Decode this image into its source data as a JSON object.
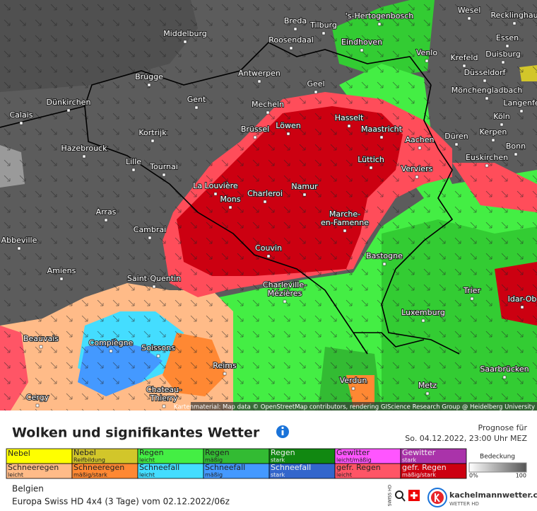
{
  "map": {
    "cities": [
      "Breda",
      "Tilburg",
      "'s-Hertogenbosch",
      "Wesel",
      "Recklinghau",
      "Middelburg",
      "Roosendaal",
      "Eindhoven",
      "Venlo",
      "Essen",
      "Krefeld",
      "Duisburg",
      "Düsseldorf",
      "Brügge",
      "Antwerpen",
      "Geel",
      "Mönchengladbach",
      "Dünkirchen",
      "Gent",
      "Mecheln",
      "Langenfe",
      "Calais",
      "Hasselt",
      "Köln",
      "Brüssel",
      "Löwen",
      "Maastricht",
      "Kortrijk",
      "Kerpen",
      "Düren",
      "Aachen",
      "Bonn",
      "Hazebrouck",
      "Lüttich",
      "Euskirchen",
      "Lille",
      "Tournai",
      "Verviers",
      "La Louvière",
      "Namur",
      "Charleroi",
      "Mons",
      "Arras",
      [
        "Marche-",
        "en-Famenne"
      ],
      "Cambrai",
      "Abbeville",
      "Couvin",
      "Bastogne",
      "Amiens",
      "Saint-Quentin",
      [
        "Charleville-",
        "Mézières"
      ],
      "Trier",
      "Idar-Ob",
      "Luxemburg",
      "Beauvais",
      "Compiègne",
      "Soissons",
      "Reims",
      "Saarbrücken",
      "Verdun",
      "Metz",
      [
        "Chateau-",
        "Thierry"
      ],
      "Cergy"
    ],
    "attribution": "Kartenmaterial: Map data © OpenStreetMap contributors, rendering GIScience Research Group @ Heidelberg University"
  },
  "header": {
    "title": "Wolken und signifikantes Wetter",
    "forecast_label": "Prognose für",
    "forecast_time": "So. 04.12.2022, 23:00 Uhr MEZ"
  },
  "legend": {
    "rows": [
      [
        {
          "name": "Nebel",
          "color": "#ffff00"
        },
        {
          "name": "Nebel",
          "sub": "Reifbildung",
          "color": "#d2c62a"
        },
        {
          "name": "Regen",
          "sub": "leicht",
          "color": "#44ee44"
        },
        {
          "name": "Regen",
          "sub": "mäßig",
          "color": "#33bb33"
        },
        {
          "name": "Regen",
          "sub": "stark",
          "color": "#118811"
        },
        {
          "name": "Gewitter",
          "sub": "leicht/mäßig",
          "color": "#ff55ff"
        },
        {
          "name": "Gewitter",
          "sub": "stark",
          "color": "#aa33aa"
        }
      ],
      [
        {
          "name": "Schneeregen",
          "sub": "leicht",
          "color": "#ffbb88"
        },
        {
          "name": "Schneeregen",
          "sub": "mäßig/stark",
          "color": "#ff8833"
        },
        {
          "name": "Schneefall",
          "sub": "leicht",
          "color": "#44ddff"
        },
        {
          "name": "Schneefall",
          "sub": "mäßig",
          "color": "#4499ff"
        },
        {
          "name": "Schneefall",
          "sub": "stark",
          "color": "#3366cc"
        },
        {
          "name": "gefr. Regen",
          "sub": "leicht",
          "color": "#ff5566"
        },
        {
          "name": "gefr. Regen",
          "sub": "mäßig/stark",
          "color": "#cc0011"
        }
      ]
    ],
    "coverage": {
      "label": "Bedeckung",
      "min": "0%",
      "max": "100"
    }
  },
  "footer": {
    "region": "Belgien",
    "model": "Europa Swiss HD 4x4 (3 Tage) vom 02.12.2022/06z",
    "brand": "kachelmannwetter.com",
    "brand_sub": "WETTER HD",
    "swiss": "SWISS HD"
  }
}
